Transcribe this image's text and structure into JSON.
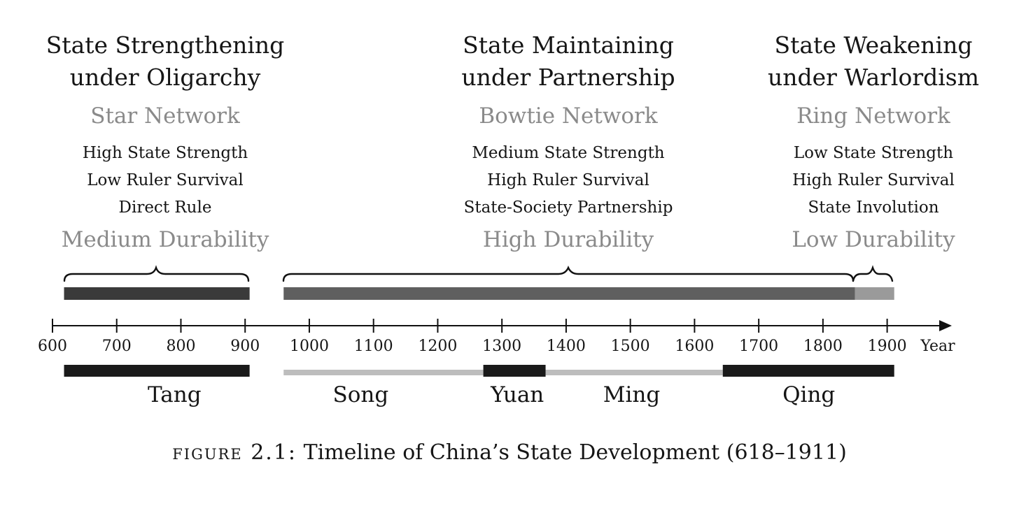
{
  "phases": [
    {
      "title_line1": "State Strengthening",
      "title_line2": "under Oligarchy",
      "network": "Star Network",
      "attributes": [
        "High State Strength",
        "Low Ruler Survival",
        "Direct Rule"
      ],
      "durability": "Medium Durability"
    },
    {
      "title_line1": "State Maintaining",
      "title_line2": "under Partnership",
      "network": "Bowtie Network",
      "attributes": [
        "Medium State Strength",
        "High Ruler Survival",
        "State-Society Partnership"
      ],
      "durability": "High Durability"
    },
    {
      "title_line1": "State Weakening",
      "title_line2": "under Warlordism",
      "network": "Ring Network",
      "attributes": [
        "Low State Strength",
        "High Ruler Survival",
        "State Involution"
      ],
      "durability": "Low Durability"
    }
  ],
  "axis": {
    "ticks": [
      "600",
      "700",
      "800",
      "900",
      "1000",
      "1100",
      "1200",
      "1300",
      "1400",
      "1500",
      "1600",
      "1700",
      "1800",
      "1900"
    ],
    "unit_label": "Year"
  },
  "durability_bars": [
    {
      "start": 618,
      "end": 907,
      "color": "#3a3a3a"
    },
    {
      "start": 960,
      "end": 1850,
      "color": "#5f5f5f"
    },
    {
      "start": 1850,
      "end": 1911,
      "color": "#9a9a9a"
    }
  ],
  "dynasties": [
    {
      "name": "Tang",
      "start": 618,
      "end": 907,
      "style": "thick",
      "color": "#1a1a1a",
      "label_year": 790
    },
    {
      "name": "Song",
      "start": 960,
      "end": 1271,
      "style": "thin",
      "color": "#bdbdbd",
      "label_year": 1080
    },
    {
      "name": "Yuan",
      "start": 1271,
      "end": 1368,
      "style": "thick",
      "color": "#1a1a1a",
      "label_year": 1324
    },
    {
      "name": "Ming",
      "start": 1368,
      "end": 1644,
      "style": "thin",
      "color": "#bdbdbd",
      "label_year": 1502
    },
    {
      "name": "Qing",
      "start": 1644,
      "end": 1911,
      "style": "thick",
      "color": "#1a1a1a",
      "label_year": 1778
    }
  ],
  "caption": {
    "prefix": "figure 2.1:",
    "text": " Timeline of China’s State Development (618–1911)"
  }
}
